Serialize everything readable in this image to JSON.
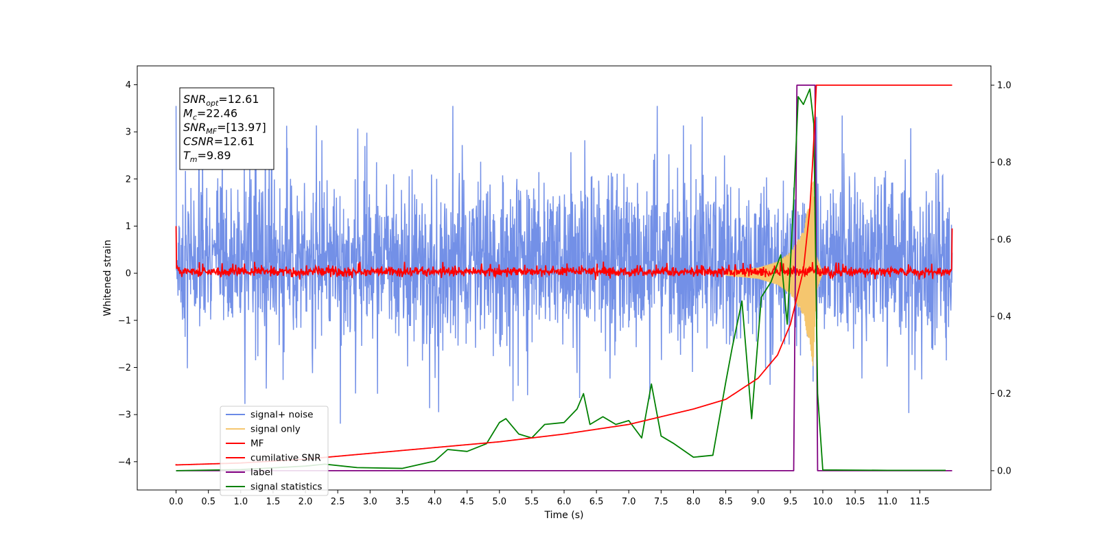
{
  "chart_data": {
    "type": "line",
    "xlabel": "Time (s)",
    "ylabel": "Whitened strain",
    "xlim": [
      -0.6,
      12.6
    ],
    "ylim": [
      -4.6,
      4.4
    ],
    "y2lim": [
      -0.05,
      1.05
    ],
    "x_ticks": [
      0.0,
      0.5,
      1.0,
      1.5,
      2.0,
      2.5,
      3.0,
      3.5,
      4.0,
      4.5,
      5.0,
      5.5,
      6.0,
      6.5,
      7.0,
      7.5,
      8.0,
      8.5,
      9.0,
      9.5,
      10.0,
      10.5,
      11.0,
      11.5
    ],
    "x_tick_labels": [
      "0.0",
      "0.5",
      "1.0",
      "1.5",
      "2.0",
      "2.5",
      "3.0",
      "3.5",
      "4.0",
      "4.5",
      "5.0",
      "5.5",
      "6.0",
      "6.5",
      "7.0",
      "7.5",
      "8.0",
      "8.5",
      "9.0",
      "9.5",
      "10.0",
      "10.5",
      "11.0",
      "11.5"
    ],
    "y_ticks": [
      4,
      3,
      2,
      1,
      0,
      -1,
      -2,
      -3,
      -4
    ],
    "y_tick_labels": [
      "4",
      "3",
      "2",
      "1",
      "0",
      "−1",
      "−2",
      "−3",
      "−4"
    ],
    "y2_ticks": [
      1.0,
      0.8,
      0.6,
      0.4,
      0.2,
      0.0
    ],
    "y2_tick_labels": [
      "1.0",
      "0.8",
      "0.6",
      "0.4",
      "0.2",
      "0.0"
    ],
    "grid": false,
    "legend_placement": "lower-left",
    "series": [
      {
        "name": "signal+ noise",
        "axis": "left",
        "color": "#6b8ae6",
        "kind": "noise-band",
        "x_range": [
          0.0,
          12.0
        ],
        "typical_envelope": [
          -1.7,
          2.0
        ],
        "extremes": [
          -3.2,
          3.55
        ]
      },
      {
        "name": "signal only",
        "axis": "left",
        "color": "#f5c66e",
        "kind": "chirp",
        "x": [
          8.5,
          9.0,
          9.3,
          9.5,
          9.7,
          9.8,
          9.85,
          9.9,
          10.0
        ],
        "amplitude": [
          0.05,
          0.12,
          0.25,
          0.45,
          0.9,
          1.6,
          2.0,
          0.4,
          0.0
        ]
      },
      {
        "name": "MF",
        "axis": "left",
        "color": "#ff0000",
        "kind": "noise-band",
        "x_range": [
          0.0,
          12.0
        ],
        "typical_envelope": [
          -0.1,
          0.15
        ],
        "edge_values": [
          1.0,
          0.95
        ]
      },
      {
        "name": "cumilative SNR",
        "axis": "right",
        "color": "#ff0000",
        "x": [
          0.0,
          1.0,
          2.0,
          3.0,
          4.0,
          5.0,
          6.0,
          7.0,
          7.5,
          8.0,
          8.5,
          9.0,
          9.3,
          9.5,
          9.7,
          9.8,
          9.85,
          9.9,
          10.0,
          11.0,
          12.0
        ],
        "values": [
          0.015,
          0.02,
          0.03,
          0.045,
          0.06,
          0.075,
          0.095,
          0.12,
          0.14,
          0.16,
          0.185,
          0.24,
          0.3,
          0.38,
          0.52,
          0.68,
          0.82,
          1.0,
          1.0,
          1.0,
          1.0
        ]
      },
      {
        "name": "label",
        "axis": "right",
        "color": "#800080",
        "x": [
          0.0,
          9.55,
          9.6,
          9.88,
          9.92,
          12.0
        ],
        "values": [
          0.0,
          0.0,
          1.0,
          1.0,
          0.0,
          0.0
        ]
      },
      {
        "name": "signal statistics",
        "axis": "right",
        "color": "#008000",
        "x": [
          0.0,
          1.0,
          2.0,
          2.3,
          2.8,
          3.5,
          4.0,
          4.2,
          4.5,
          4.8,
          5.0,
          5.1,
          5.3,
          5.5,
          5.7,
          6.0,
          6.2,
          6.3,
          6.4,
          6.6,
          6.8,
          7.0,
          7.2,
          7.35,
          7.5,
          7.7,
          8.0,
          8.3,
          8.5,
          8.6,
          8.75,
          8.9,
          9.05,
          9.2,
          9.35,
          9.45,
          9.55,
          9.62,
          9.7,
          9.8,
          9.86,
          9.92,
          10.0,
          11.0,
          11.9
        ],
        "values": [
          0.0,
          0.003,
          0.012,
          0.017,
          0.008,
          0.006,
          0.025,
          0.055,
          0.05,
          0.07,
          0.125,
          0.135,
          0.095,
          0.085,
          0.12,
          0.125,
          0.16,
          0.2,
          0.12,
          0.14,
          0.12,
          0.13,
          0.085,
          0.225,
          0.09,
          0.07,
          0.035,
          0.04,
          0.23,
          0.32,
          0.44,
          0.135,
          0.45,
          0.49,
          0.56,
          0.38,
          0.7,
          0.97,
          0.95,
          0.99,
          0.9,
          0.2,
          0.002,
          0.001,
          0.001
        ]
      }
    ],
    "annotation_box": {
      "lines": [
        {
          "sym": "SNR",
          "sub": "opt",
          "value": "=12.61"
        },
        {
          "sym": "M",
          "sub": "c",
          "value": "=22.46"
        },
        {
          "sym": "SNR",
          "sub": "MF",
          "value": "=[13.97]"
        },
        {
          "sym": "CSNR",
          "sub": "",
          "value": "=12.61"
        },
        {
          "sym": "T",
          "sub": "m",
          "value": "=9.89"
        }
      ]
    }
  }
}
